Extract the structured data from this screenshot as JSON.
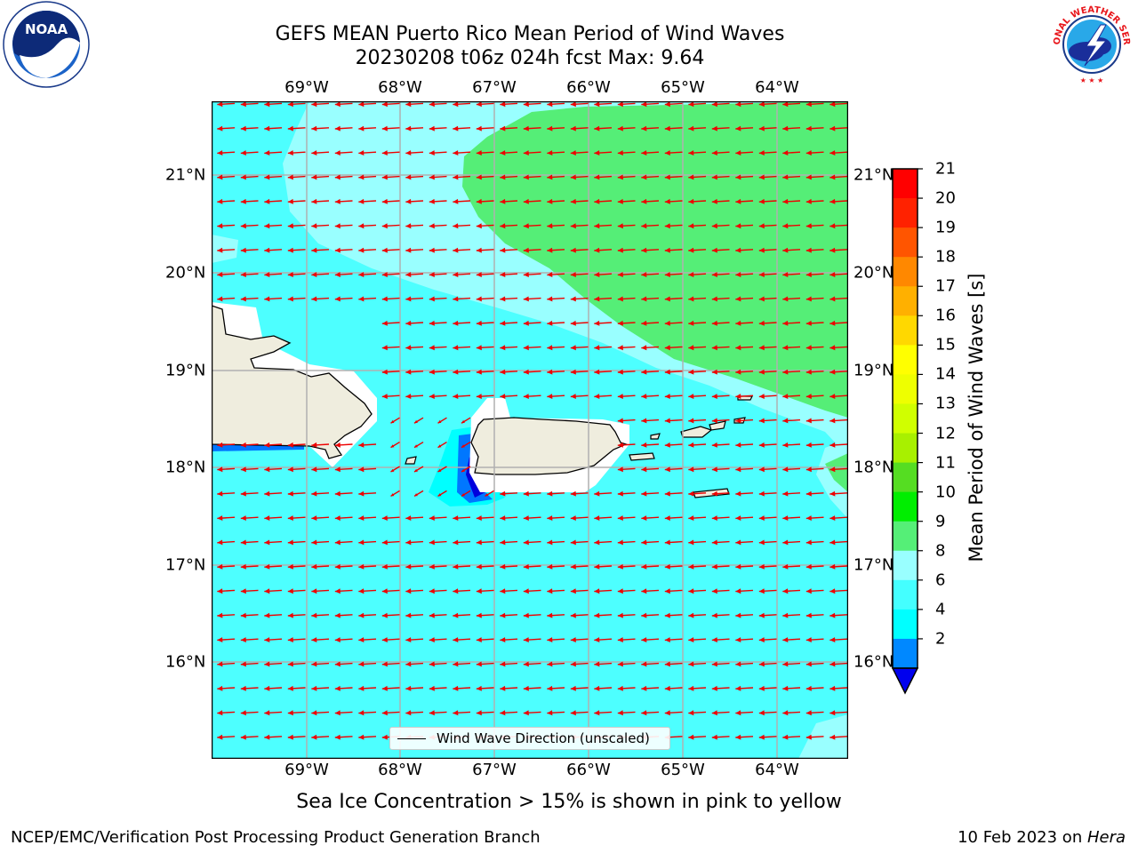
{
  "header": {
    "title_line1": "GEFS MEAN Puerto Rico Mean Period of Wind Waves",
    "title_line2": "20230208 t06z 024h fcst   Max: 9.64"
  },
  "axes": {
    "lon_labels": [
      "69°W",
      "68°W",
      "67°W",
      "66°W",
      "65°W",
      "64°W"
    ],
    "lat_labels": [
      "21°N",
      "20°N",
      "19°N",
      "18°N",
      "17°N",
      "16°N"
    ]
  },
  "legend": {
    "label": "Wind Wave Direction (unscaled)"
  },
  "colorbar": {
    "label": "Mean Period of Wind Waves [s]",
    "ticks": [
      "21",
      "20",
      "19",
      "18",
      "17",
      "16",
      "15",
      "14",
      "13",
      "12",
      "11",
      "10",
      "9",
      "8",
      "6",
      "4",
      "2"
    ],
    "colors": [
      "#ff0000",
      "#ff2200",
      "#ff5500",
      "#ff8800",
      "#ffb000",
      "#ffd800",
      "#ffff00",
      "#eeff00",
      "#d0ff00",
      "#a8f000",
      "#55dd22",
      "#00ee00",
      "#55ef77",
      "#99ffff",
      "#44ffff",
      "#00ffff",
      "#0088ff"
    ],
    "under_color": "#0000ee"
  },
  "field_colors": {
    "period_6_8": "#4dffff",
    "period_8_9": "#99ffff",
    "period_9_10": "#55ee77",
    "period_4_6": "#00ffff",
    "period_2_4": "#0077ff",
    "below_2": "#0000dd",
    "land": "#efedde",
    "arrow": "#ee0000"
  },
  "notes": {
    "sea_ice": "Sea Ice Concentration > 15% is shown in pink to yellow"
  },
  "footer": {
    "left": "NCEP/EMC/Verification Post Processing Product Generation Branch",
    "right_prefix": "10 Feb 2023 on ",
    "right_host": "Hera"
  },
  "logos": {
    "noaa": "NOAA",
    "noaa_ring": "NATIONAL OCEANIC AND ATMOSPHERIC ADMINISTRATION • U.S. DEPARTMENT OF COMMERCE",
    "nws_ring": "NATIONAL WEATHER SERVICE"
  }
}
